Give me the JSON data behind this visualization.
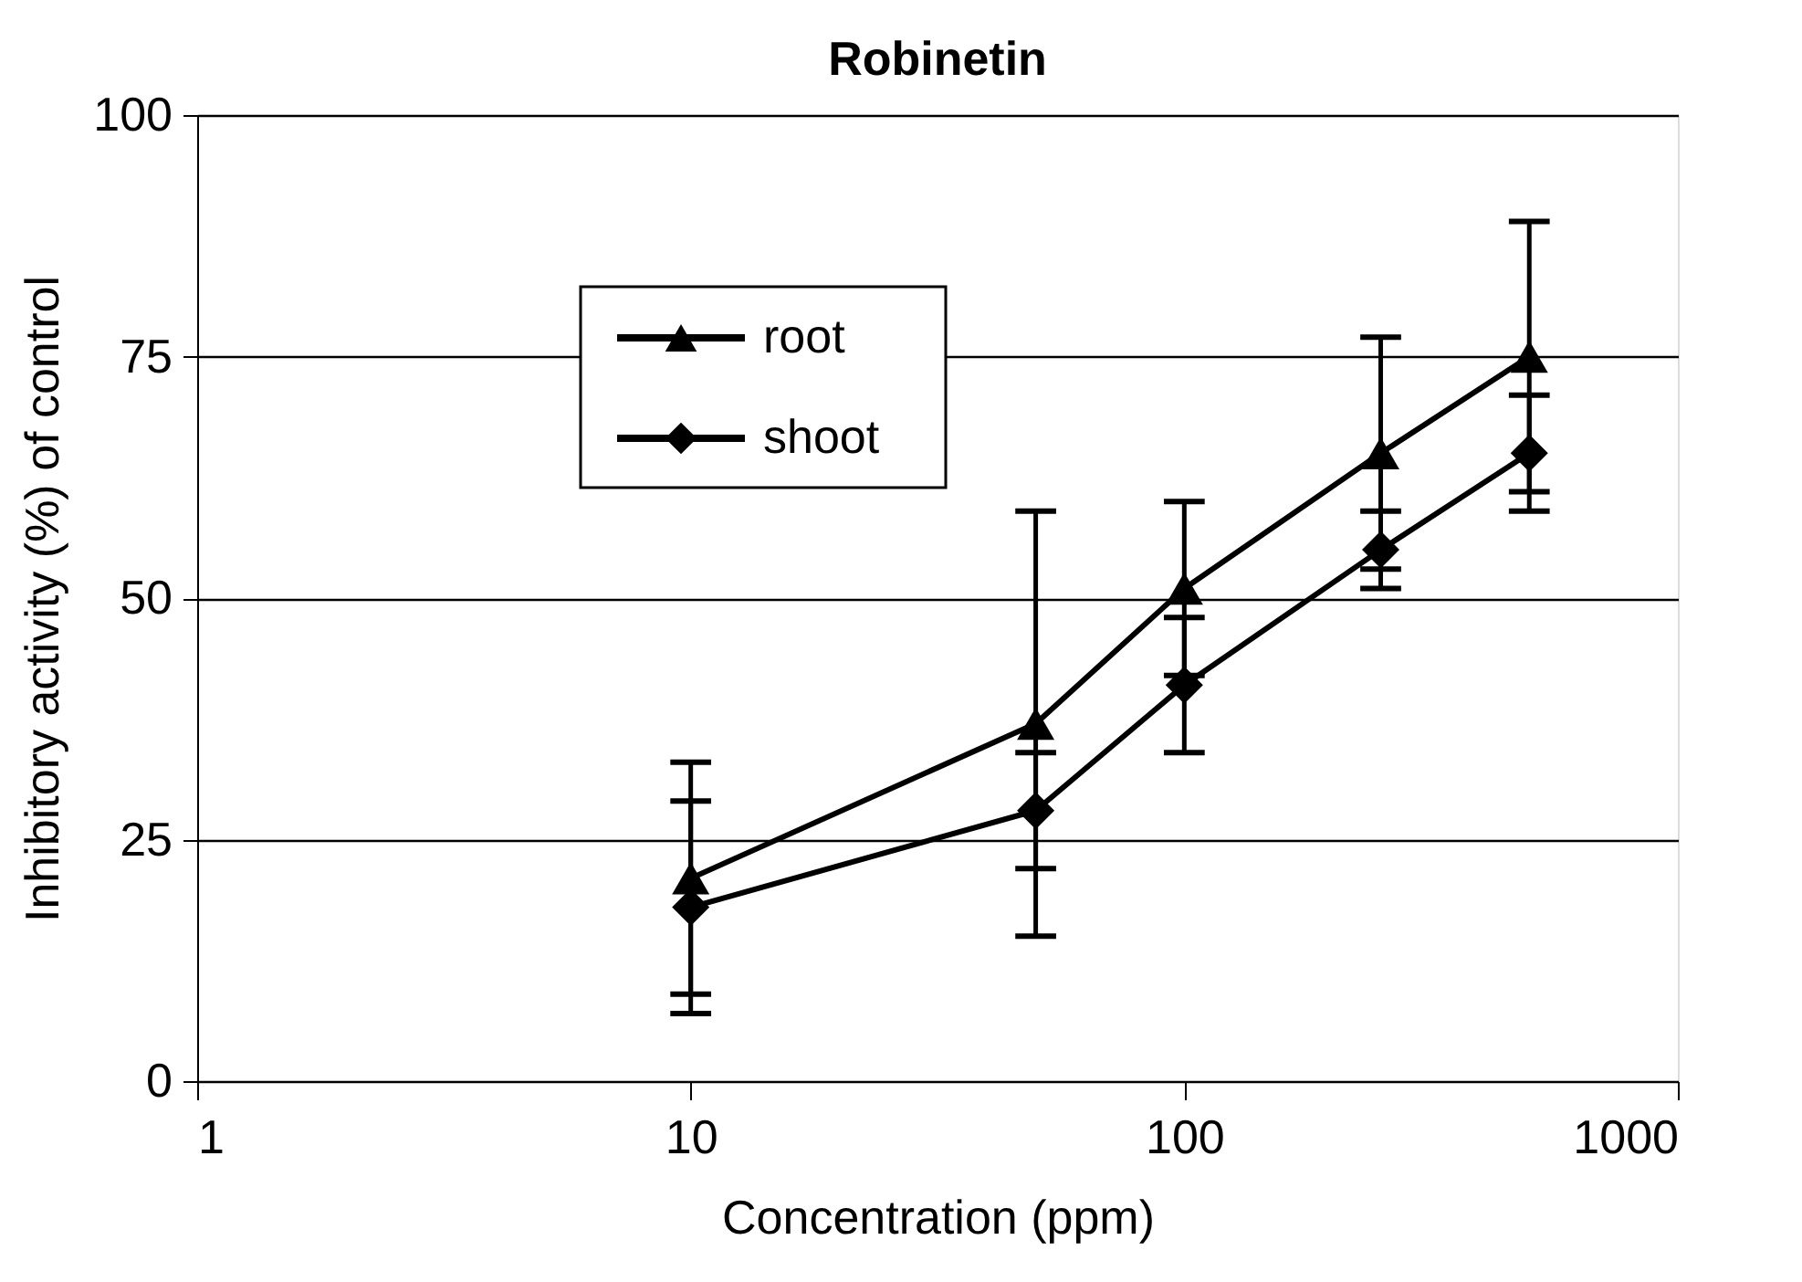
{
  "chart_data": {
    "type": "line",
    "title": "Robinetin",
    "xlabel": "Concentration (ppm)",
    "ylabel": "Inhibitory activity (%) of control",
    "x": [
      10,
      50,
      100,
      250,
      500
    ],
    "series": [
      {
        "name": "root",
        "color": "#000000",
        "marker": "triangle",
        "values": [
          21,
          37,
          51,
          65,
          75
        ],
        "errors": [
          12,
          22,
          9,
          12,
          14
        ]
      },
      {
        "name": "shoot",
        "color": "#000000",
        "marker": "diamond",
        "values": [
          18,
          28,
          41,
          55,
          65
        ],
        "errors": [
          11,
          6,
          7,
          4,
          6
        ]
      }
    ],
    "log": "x",
    "xlim": [
      1,
      1000
    ],
    "xticks": [
      1,
      10,
      100,
      1000
    ],
    "ylim": [
      0,
      100
    ],
    "yticks": [
      0,
      25,
      50,
      75,
      100
    ],
    "grid": "y",
    "legend": "top left",
    "line_style": "solid"
  }
}
